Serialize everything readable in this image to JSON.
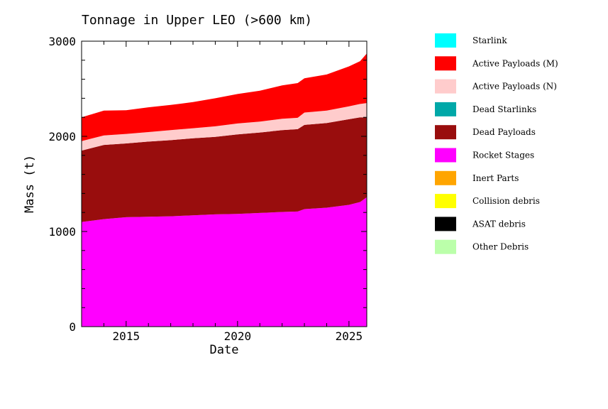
{
  "chart_data": {
    "type": "area",
    "title": "Tonnage in Upper LEO (>600 km)",
    "xlabel": "Date",
    "ylabel": "Mass (t)",
    "xlim": [
      2013.0,
      2025.8
    ],
    "ylim": [
      0,
      3000
    ],
    "x_ticks": [
      2015,
      2020,
      2025
    ],
    "y_ticks": [
      0,
      1000,
      2000,
      3000
    ],
    "x": [
      2013.0,
      2014.0,
      2015.0,
      2016.0,
      2017.0,
      2018.0,
      2019.0,
      2020.0,
      2021.0,
      2022.0,
      2022.7,
      2023.0,
      2024.0,
      2025.0,
      2025.5,
      2025.8
    ],
    "stack_order": [
      "Rocket Stages",
      "Dead Payloads",
      "Active Payloads (N)",
      "Active Payloads (M)"
    ],
    "series": [
      {
        "name": "Starlink",
        "color": "#00ffff",
        "values": [
          0,
          0,
          0,
          0,
          0,
          0,
          0,
          0,
          0,
          0,
          0,
          0,
          0,
          0,
          0,
          0
        ]
      },
      {
        "name": "Active Payloads (M)",
        "color": "#ff0000",
        "values": [
          250,
          260,
          250,
          260,
          265,
          275,
          295,
          310,
          325,
          350,
          365,
          360,
          380,
          420,
          450,
          520
        ]
      },
      {
        "name": "Active Payloads (N)",
        "color": "#ffcccc",
        "values": [
          100,
          100,
          100,
          100,
          105,
          105,
          110,
          115,
          115,
          120,
          120,
          130,
          130,
          135,
          140,
          150
        ]
      },
      {
        "name": "Dead Starlinks",
        "color": "#00a8a8",
        "values": [
          0,
          0,
          0,
          0,
          0,
          0,
          0,
          0,
          0,
          0,
          0,
          0,
          0,
          0,
          0,
          0
        ]
      },
      {
        "name": "Dead Payloads",
        "color": "#990d0d",
        "values": [
          750,
          780,
          775,
          790,
          800,
          810,
          815,
          835,
          845,
          860,
          865,
          885,
          890,
          900,
          890,
          840
        ]
      },
      {
        "name": "Rocket Stages",
        "color": "#ff00ff",
        "values": [
          1100,
          1130,
          1150,
          1155,
          1160,
          1170,
          1180,
          1185,
          1195,
          1205,
          1210,
          1235,
          1250,
          1280,
          1310,
          1360
        ]
      },
      {
        "name": "Inert Parts",
        "color": "#ffa500",
        "values": [
          0,
          0,
          0,
          0,
          0,
          0,
          0,
          0,
          0,
          0,
          0,
          0,
          0,
          0,
          0,
          0
        ]
      },
      {
        "name": "Collision debris",
        "color": "#ffff00",
        "values": [
          0,
          0,
          0,
          0,
          0,
          0,
          0,
          0,
          0,
          0,
          0,
          0,
          0,
          0,
          0,
          0
        ]
      },
      {
        "name": "ASAT debris",
        "color": "#000000",
        "values": [
          0,
          0,
          0,
          0,
          0,
          0,
          0,
          0,
          0,
          0,
          0,
          0,
          0,
          0,
          0,
          0
        ]
      },
      {
        "name": "Other Debris",
        "color": "#bbffaa",
        "values": [
          0,
          0,
          0,
          0,
          0,
          0,
          0,
          0,
          0,
          0,
          0,
          0,
          0,
          0,
          0,
          0
        ]
      }
    ],
    "legend_position": "right"
  }
}
